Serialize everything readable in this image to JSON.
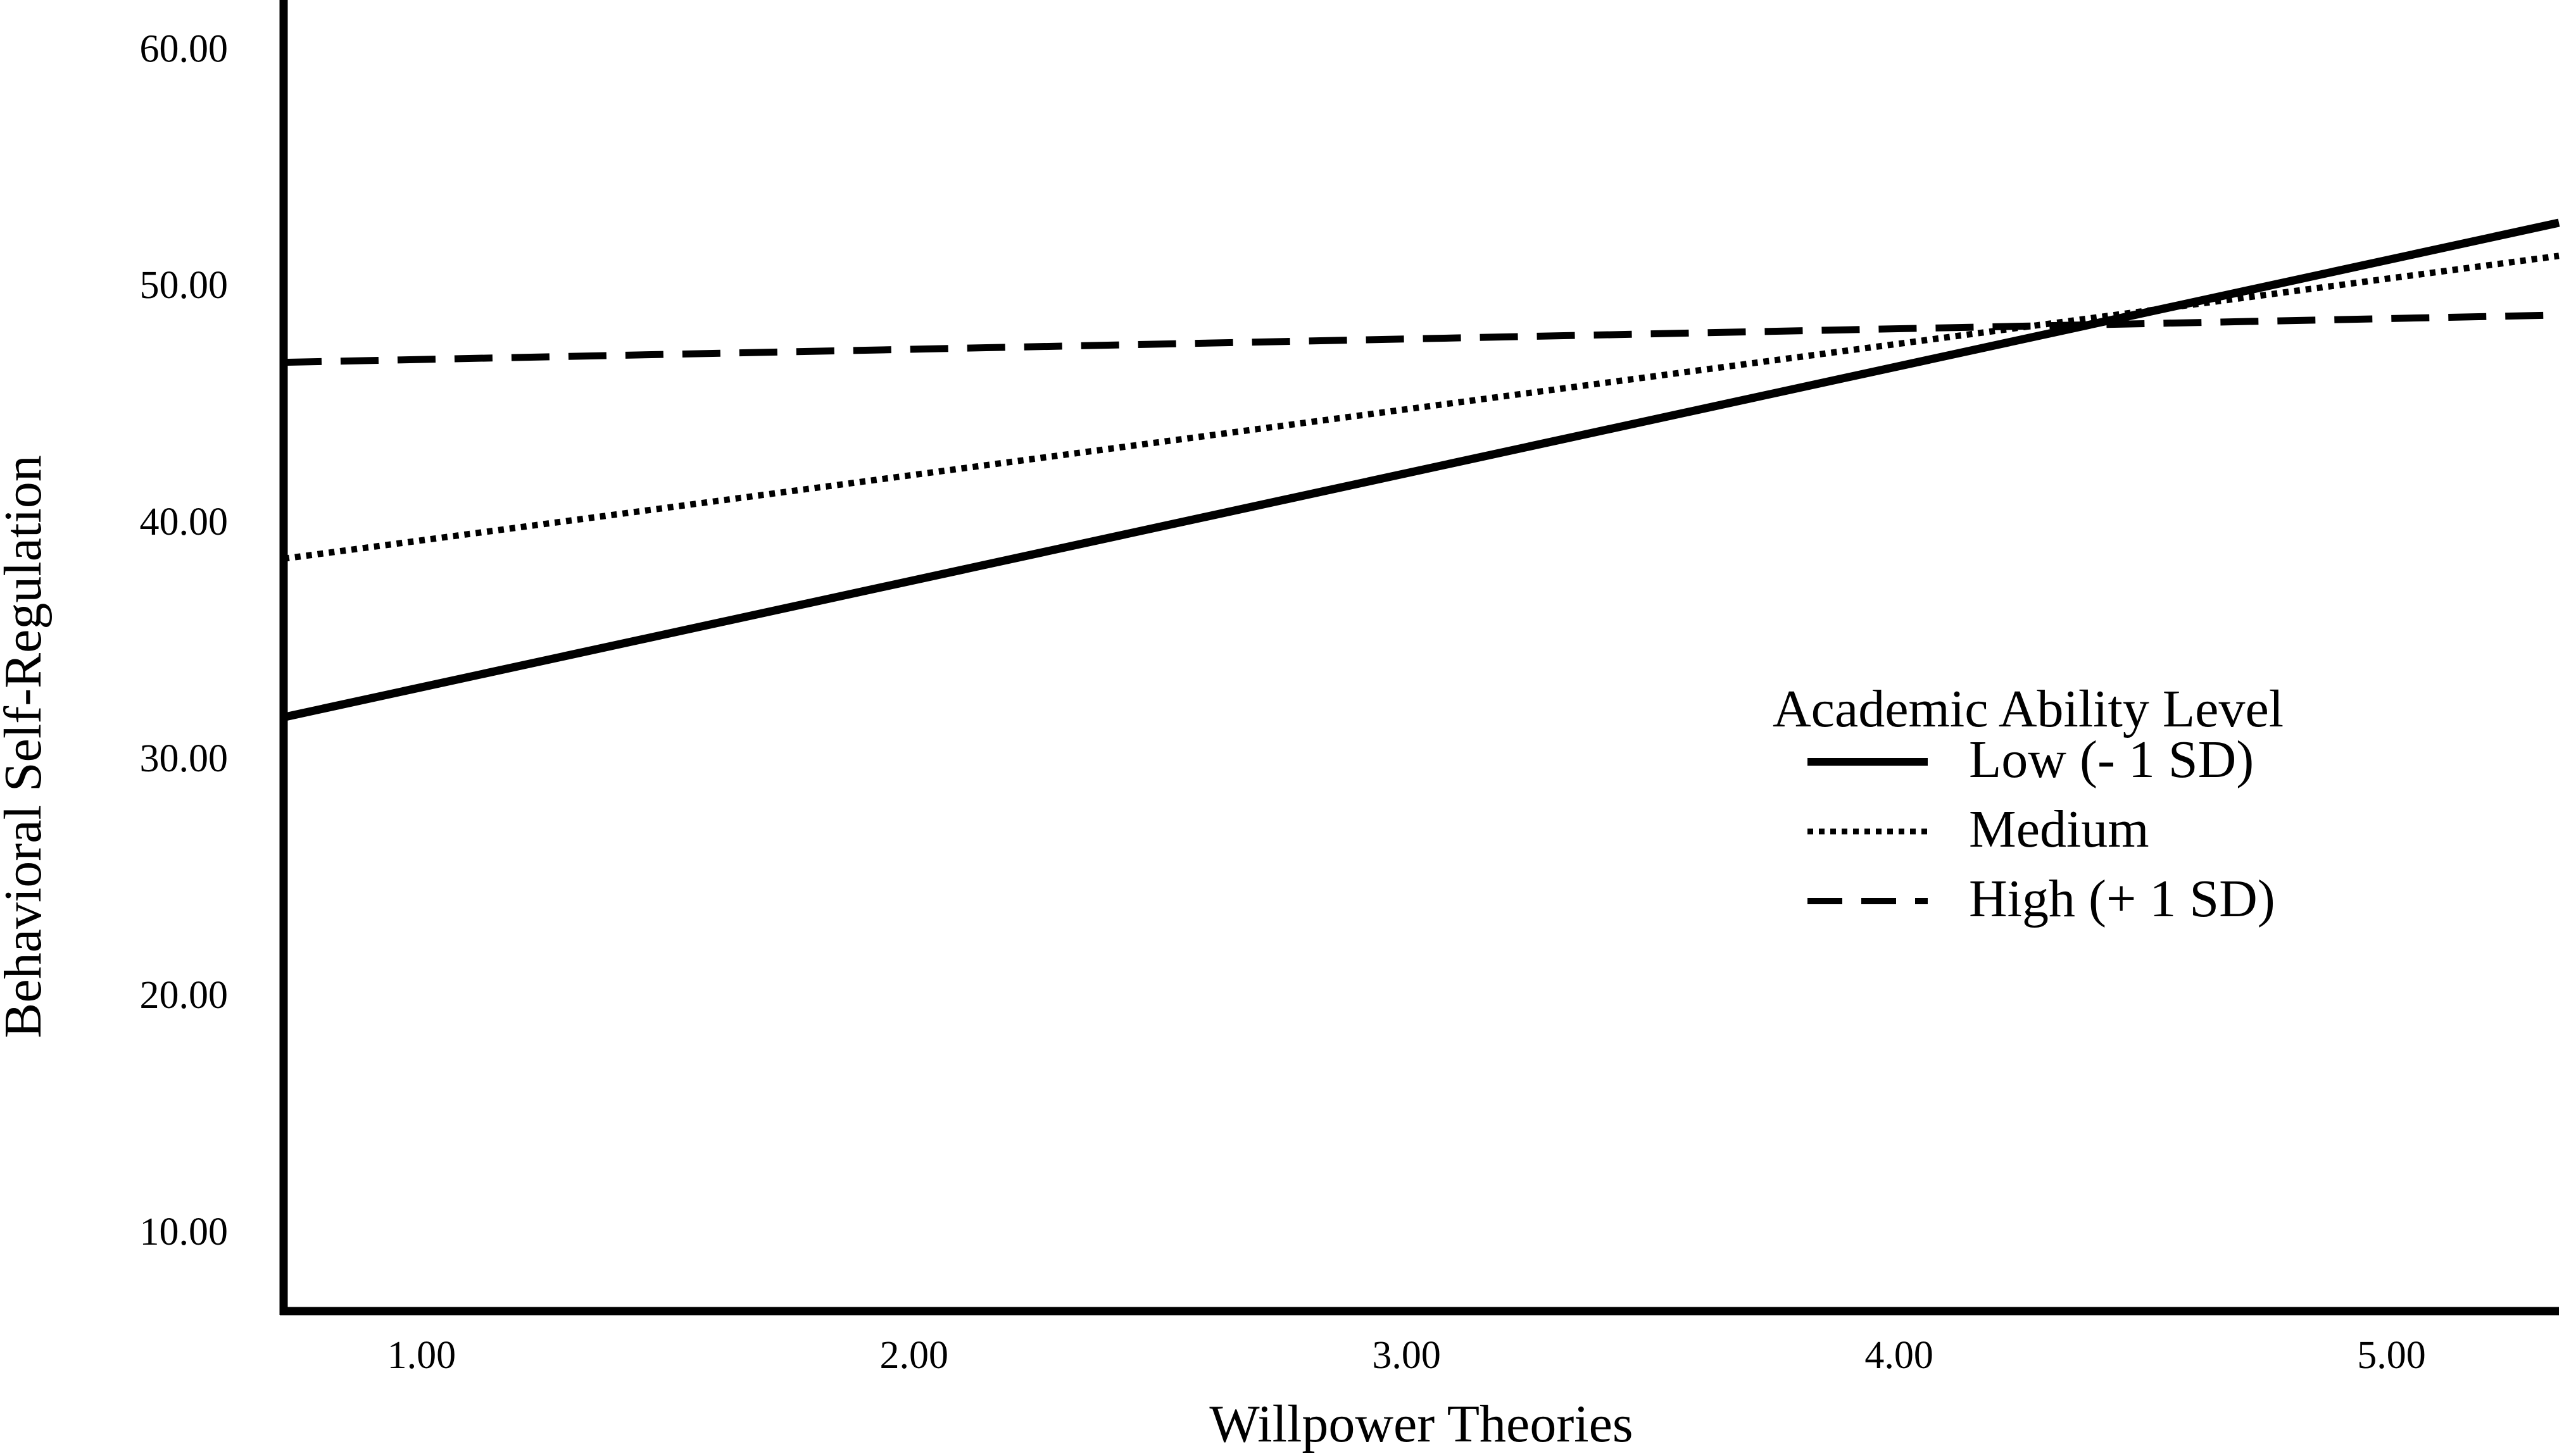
{
  "chart_data": {
    "type": "line",
    "title": "",
    "xlabel": "Willpower Theories",
    "ylabel": "Behavioral Self-Regulation",
    "xlim": [
      0.72,
      5.34
    ],
    "ylim": [
      6.6,
      61.8
    ],
    "x_ticks": [
      1.0,
      2.0,
      3.0,
      4.0,
      5.0
    ],
    "x_tick_labels": [
      "1.00",
      "2.00",
      "3.00",
      "4.00",
      "5.00"
    ],
    "y_ticks": [
      10.0,
      20.0,
      30.0,
      40.0,
      50.0,
      60.0
    ],
    "y_tick_labels": [
      "10.00",
      "20.00",
      "30.00",
      "40.00",
      "50.00",
      "60.00"
    ],
    "grid": false,
    "legend": {
      "title": "Academic Ability Level",
      "placement": "right"
    },
    "series": [
      {
        "name": "Low (- 1 SD)",
        "style": "solid",
        "color": "#000000",
        "x": [
          0.72,
          5.34
        ],
        "y": [
          31.7,
          52.6
        ]
      },
      {
        "name": "Medium",
        "style": "dotted",
        "color": "#000000",
        "x": [
          0.72,
          5.34
        ],
        "y": [
          38.4,
          51.2
        ]
      },
      {
        "name": "High (+ 1 SD)",
        "style": "dashed",
        "color": "#000000",
        "x": [
          0.72,
          5.34
        ],
        "y": [
          46.7,
          48.7
        ]
      }
    ]
  }
}
